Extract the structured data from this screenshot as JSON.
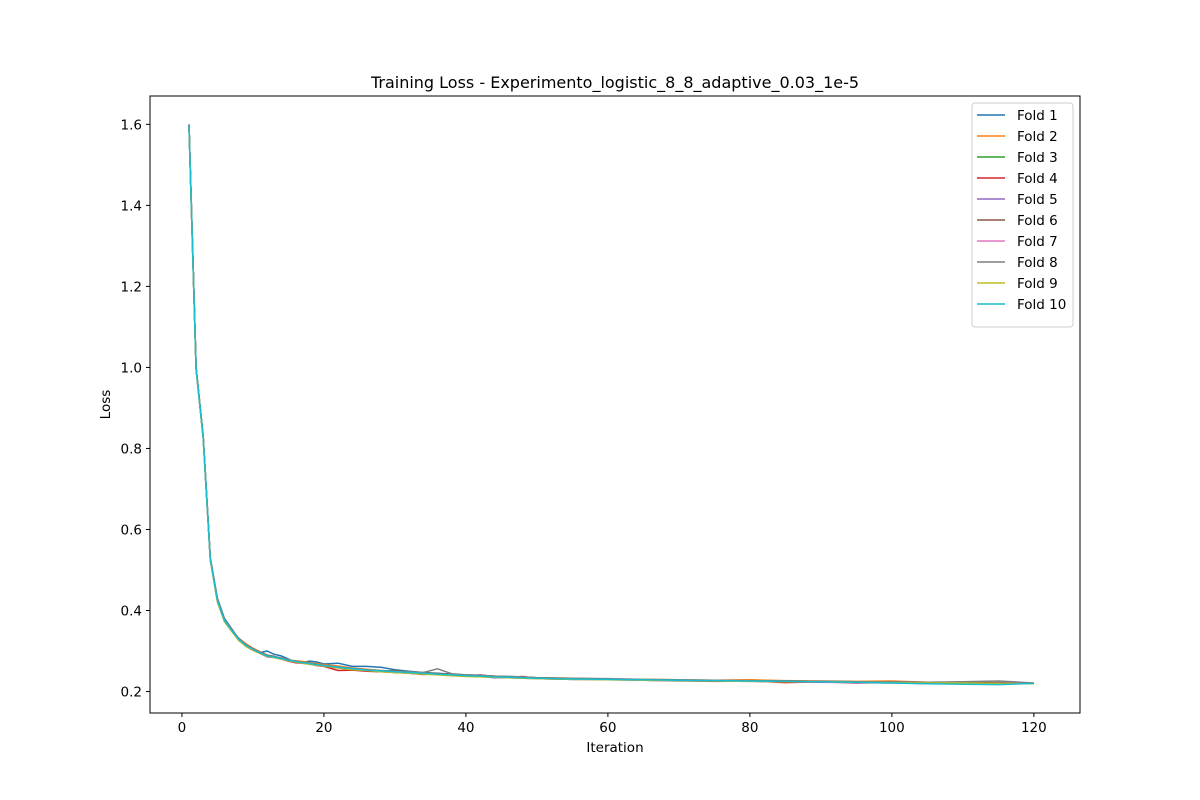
{
  "chart_data": {
    "type": "line",
    "title": "Training Loss - Experimento_logistic_8_8_adaptive_0.03_1e-5",
    "xlabel": "Iteration",
    "ylabel": "Loss",
    "xlim": [
      -4.5,
      126.5
    ],
    "ylim": [
      0.147,
      1.67
    ],
    "xticks": [
      0,
      20,
      40,
      60,
      80,
      100,
      120
    ],
    "yticks": [
      0.2,
      0.4,
      0.6,
      0.8,
      1.0,
      1.2,
      1.4,
      1.6
    ],
    "ytick_labels": [
      "0.2",
      "0.4",
      "0.6",
      "0.8",
      "1.0",
      "1.2",
      "1.4",
      "1.6"
    ],
    "grid": false,
    "legend": "top-right",
    "x": [
      1,
      2,
      3,
      4,
      5,
      6,
      7,
      8,
      9,
      10,
      11,
      12,
      13,
      14,
      15,
      16,
      17,
      18,
      19,
      20,
      22,
      24,
      26,
      28,
      30,
      32,
      34,
      36,
      38,
      40,
      42,
      44,
      46,
      48,
      50,
      55,
      60,
      65,
      70,
      75,
      80,
      85,
      90,
      95,
      100,
      105,
      110,
      115,
      120
    ],
    "series": [
      {
        "name": "Fold 1",
        "color": "#1f77b4",
        "values": [
          1.6,
          1.0,
          0.83,
          0.53,
          0.43,
          0.38,
          0.355,
          0.33,
          0.315,
          0.305,
          0.296,
          0.3,
          0.292,
          0.288,
          0.28,
          0.272,
          0.272,
          0.275,
          0.273,
          0.268,
          0.27,
          0.262,
          0.262,
          0.26,
          0.254,
          0.25,
          0.247,
          0.245,
          0.243,
          0.241,
          0.24,
          0.238,
          0.237,
          0.236,
          0.234,
          0.232,
          0.23,
          0.229,
          0.228,
          0.227,
          0.227,
          0.226,
          0.225,
          0.224,
          0.223,
          0.222,
          0.222,
          0.221,
          0.22
        ]
      },
      {
        "name": "Fold 2",
        "color": "#ff7f0e",
        "values": [
          1.598,
          0.998,
          0.828,
          0.528,
          0.425,
          0.375,
          0.352,
          0.332,
          0.318,
          0.307,
          0.298,
          0.29,
          0.286,
          0.283,
          0.278,
          0.276,
          0.274,
          0.271,
          0.269,
          0.266,
          0.263,
          0.258,
          0.255,
          0.252,
          0.25,
          0.248,
          0.246,
          0.244,
          0.242,
          0.24,
          0.239,
          0.238,
          0.236,
          0.235,
          0.234,
          0.233,
          0.231,
          0.23,
          0.229,
          0.228,
          0.229,
          0.227,
          0.226,
          0.225,
          0.226,
          0.223,
          0.222,
          0.221,
          0.221
        ]
      },
      {
        "name": "Fold 3",
        "color": "#2ca02c",
        "values": [
          1.596,
          0.996,
          0.826,
          0.526,
          0.422,
          0.373,
          0.35,
          0.328,
          0.314,
          0.304,
          0.296,
          0.289,
          0.285,
          0.281,
          0.277,
          0.274,
          0.271,
          0.268,
          0.266,
          0.264,
          0.26,
          0.256,
          0.253,
          0.251,
          0.249,
          0.247,
          0.245,
          0.243,
          0.241,
          0.239,
          0.238,
          0.237,
          0.235,
          0.234,
          0.233,
          0.232,
          0.23,
          0.229,
          0.228,
          0.227,
          0.226,
          0.226,
          0.225,
          0.224,
          0.223,
          0.222,
          0.222,
          0.221,
          0.22
        ]
      },
      {
        "name": "Fold 4",
        "color": "#d62728",
        "values": [
          1.599,
          0.999,
          0.829,
          0.529,
          0.428,
          0.377,
          0.353,
          0.33,
          0.312,
          0.302,
          0.294,
          0.286,
          0.284,
          0.28,
          0.275,
          0.271,
          0.27,
          0.268,
          0.264,
          0.262,
          0.252,
          0.253,
          0.25,
          0.249,
          0.247,
          0.245,
          0.242,
          0.244,
          0.24,
          0.238,
          0.241,
          0.236,
          0.235,
          0.237,
          0.232,
          0.23,
          0.231,
          0.228,
          0.227,
          0.225,
          0.226,
          0.222,
          0.224,
          0.221,
          0.222,
          0.219,
          0.221,
          0.22,
          0.219
        ]
      },
      {
        "name": "Fold 5",
        "color": "#9467bd",
        "values": [
          1.597,
          0.997,
          0.827,
          0.527,
          0.424,
          0.374,
          0.351,
          0.329,
          0.313,
          0.303,
          0.295,
          0.288,
          0.285,
          0.282,
          0.276,
          0.273,
          0.271,
          0.269,
          0.266,
          0.264,
          0.259,
          0.255,
          0.253,
          0.25,
          0.248,
          0.246,
          0.244,
          0.242,
          0.24,
          0.239,
          0.237,
          0.234,
          0.234,
          0.233,
          0.232,
          0.23,
          0.229,
          0.228,
          0.226,
          0.226,
          0.225,
          0.224,
          0.223,
          0.222,
          0.221,
          0.221,
          0.22,
          0.219,
          0.219
        ]
      },
      {
        "name": "Fold 6",
        "color": "#8c564b",
        "values": [
          1.598,
          0.998,
          0.828,
          0.528,
          0.426,
          0.376,
          0.352,
          0.331,
          0.316,
          0.306,
          0.297,
          0.29,
          0.287,
          0.282,
          0.278,
          0.275,
          0.272,
          0.27,
          0.267,
          0.263,
          0.258,
          0.255,
          0.252,
          0.25,
          0.252,
          0.248,
          0.245,
          0.244,
          0.242,
          0.24,
          0.239,
          0.238,
          0.236,
          0.235,
          0.234,
          0.232,
          0.231,
          0.229,
          0.228,
          0.227,
          0.226,
          0.226,
          0.225,
          0.224,
          0.223,
          0.222,
          0.222,
          0.222,
          0.22
        ]
      },
      {
        "name": "Fold 7",
        "color": "#e377c2",
        "values": [
          1.596,
          0.996,
          0.826,
          0.526,
          0.423,
          0.374,
          0.35,
          0.327,
          0.313,
          0.303,
          0.295,
          0.288,
          0.284,
          0.281,
          0.277,
          0.274,
          0.271,
          0.268,
          0.265,
          0.263,
          0.259,
          0.256,
          0.253,
          0.25,
          0.248,
          0.246,
          0.244,
          0.242,
          0.24,
          0.239,
          0.237,
          0.236,
          0.235,
          0.234,
          0.233,
          0.231,
          0.23,
          0.229,
          0.228,
          0.227,
          0.226,
          0.225,
          0.224,
          0.223,
          0.223,
          0.222,
          0.221,
          0.22,
          0.22
        ]
      },
      {
        "name": "Fold 8",
        "color": "#7f7f7f",
        "values": [
          1.599,
          0.999,
          0.829,
          0.529,
          0.427,
          0.377,
          0.353,
          0.331,
          0.315,
          0.305,
          0.296,
          0.289,
          0.286,
          0.283,
          0.278,
          0.275,
          0.272,
          0.27,
          0.267,
          0.264,
          0.261,
          0.257,
          0.254,
          0.252,
          0.25,
          0.249,
          0.247,
          0.256,
          0.244,
          0.241,
          0.24,
          0.238,
          0.237,
          0.236,
          0.234,
          0.233,
          0.232,
          0.23,
          0.229,
          0.228,
          0.227,
          0.226,
          0.225,
          0.224,
          0.224,
          0.223,
          0.224,
          0.226,
          0.221
        ]
      },
      {
        "name": "Fold 9",
        "color": "#bcbd22",
        "values": [
          1.595,
          0.995,
          0.825,
          0.525,
          0.421,
          0.372,
          0.349,
          0.326,
          0.312,
          0.302,
          0.294,
          0.287,
          0.284,
          0.28,
          0.276,
          0.273,
          0.27,
          0.267,
          0.265,
          0.263,
          0.258,
          0.254,
          0.252,
          0.249,
          0.247,
          0.245,
          0.243,
          0.241,
          0.239,
          0.237,
          0.236,
          0.235,
          0.234,
          0.233,
          0.232,
          0.23,
          0.229,
          0.228,
          0.227,
          0.226,
          0.225,
          0.224,
          0.224,
          0.223,
          0.222,
          0.221,
          0.221,
          0.22,
          0.219
        ]
      },
      {
        "name": "Fold 10",
        "color": "#17becf",
        "values": [
          1.597,
          0.997,
          0.827,
          0.527,
          0.425,
          0.375,
          0.351,
          0.329,
          0.314,
          0.304,
          0.295,
          0.288,
          0.285,
          0.281,
          0.277,
          0.274,
          0.271,
          0.269,
          0.266,
          0.264,
          0.26,
          0.256,
          0.253,
          0.251,
          0.249,
          0.247,
          0.245,
          0.243,
          0.241,
          0.239,
          0.238,
          0.236,
          0.235,
          0.234,
          0.233,
          0.231,
          0.23,
          0.229,
          0.228,
          0.227,
          0.226,
          0.225,
          0.224,
          0.223,
          0.221,
          0.219,
          0.218,
          0.217,
          0.22
        ]
      }
    ]
  }
}
